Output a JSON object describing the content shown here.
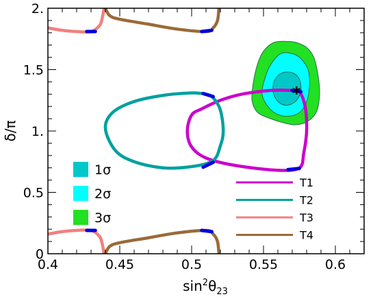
{
  "chart_data": {
    "type": "line",
    "xlabel": "sin²θ₂₃",
    "xlabel_main": "sin",
    "xlabel_sup": "2",
    "xlabel_theta": "θ",
    "xlabel_sub": "23",
    "ylabel": "δ/π",
    "xlim": [
      0.4,
      0.62
    ],
    "ylim": [
      0,
      2
    ],
    "xticks": [
      {
        "value": 0.4,
        "label": "0.4"
      },
      {
        "value": 0.45,
        "label": "0.45"
      },
      {
        "value": 0.5,
        "label": "0.5"
      },
      {
        "value": 0.55,
        "label": "0.55"
      },
      {
        "value": 0.6,
        "label": "0.6"
      }
    ],
    "yticks": [
      {
        "value": 0,
        "label": "0"
      },
      {
        "value": 0.5,
        "label": "0.5"
      },
      {
        "value": 1,
        "label": "1."
      },
      {
        "value": 1.5,
        "label": "1.5"
      },
      {
        "value": 2,
        "label": "2."
      }
    ],
    "grid": false,
    "contours": [
      {
        "name": "3σ",
        "color": "#22e022",
        "points": [
          [
            0.557,
            1.72
          ],
          [
            0.566,
            1.73
          ],
          [
            0.573,
            1.72
          ],
          [
            0.58,
            1.68
          ],
          [
            0.585,
            1.6
          ],
          [
            0.588,
            1.45
          ],
          [
            0.589,
            1.3
          ],
          [
            0.587,
            1.16
          ],
          [
            0.581,
            1.08
          ],
          [
            0.572,
            1.05
          ],
          [
            0.563,
            1.07
          ],
          [
            0.555,
            1.1
          ],
          [
            0.546,
            1.15
          ],
          [
            0.542,
            1.25
          ],
          [
            0.543,
            1.4
          ],
          [
            0.546,
            1.55
          ],
          [
            0.55,
            1.65
          ]
        ]
      },
      {
        "name": "2σ",
        "color": "#00ffff",
        "points": [
          [
            0.562,
            1.63
          ],
          [
            0.57,
            1.63
          ],
          [
            0.576,
            1.59
          ],
          [
            0.581,
            1.5
          ],
          [
            0.582,
            1.37
          ],
          [
            0.58,
            1.24
          ],
          [
            0.575,
            1.15
          ],
          [
            0.567,
            1.12
          ],
          [
            0.559,
            1.14
          ],
          [
            0.553,
            1.2
          ],
          [
            0.549,
            1.3
          ],
          [
            0.551,
            1.43
          ],
          [
            0.555,
            1.54
          ]
        ]
      },
      {
        "name": "1σ",
        "color": "#00c8c8",
        "points": [
          [
            0.565,
            1.48
          ],
          [
            0.571,
            1.47
          ],
          [
            0.575,
            1.42
          ],
          [
            0.576,
            1.33
          ],
          [
            0.573,
            1.25
          ],
          [
            0.567,
            1.21
          ],
          [
            0.561,
            1.23
          ],
          [
            0.557,
            1.3
          ],
          [
            0.557,
            1.39
          ],
          [
            0.56,
            1.45
          ]
        ]
      }
    ],
    "best_fit": {
      "x": 0.573,
      "y": 1.33,
      "marker": "*"
    },
    "series": [
      {
        "name": "T1",
        "color": "#cc00cc",
        "segments": [
          [
            [
              0.52,
              1.25
            ],
            [
              0.535,
              1.3
            ],
            [
              0.555,
              1.33
            ],
            [
              0.57,
              1.33
            ],
            [
              0.575,
              1.32
            ],
            [
              0.579,
              1.2
            ],
            [
              0.58,
              1.0
            ],
            [
              0.578,
              0.82
            ],
            [
              0.575,
              0.7
            ],
            [
              0.56,
              0.68
            ],
            [
              0.53,
              0.72
            ],
            [
              0.51,
              0.78
            ],
            [
              0.5,
              0.87
            ],
            [
              0.497,
              1.0
            ],
            [
              0.5,
              1.13
            ],
            [
              0.507,
              1.18
            ],
            [
              0.52,
              1.25
            ]
          ]
        ]
      },
      {
        "name": "T2",
        "color": "#00a0a0",
        "segments": [
          [
            [
              0.44,
              1.02
            ],
            [
              0.445,
              1.15
            ],
            [
              0.46,
              1.24
            ],
            [
              0.48,
              1.29
            ],
            [
              0.5,
              1.31
            ],
            [
              0.51,
              1.3
            ],
            [
              0.515,
              1.27
            ],
            [
              0.52,
              1.17
            ],
            [
              0.522,
              1.0
            ],
            [
              0.52,
              0.88
            ],
            [
              0.515,
              0.76
            ],
            [
              0.5,
              0.71
            ],
            [
              0.48,
              0.7
            ],
            [
              0.46,
              0.75
            ],
            [
              0.447,
              0.84
            ],
            [
              0.44,
              1.02
            ]
          ]
        ]
      },
      {
        "name": "T3",
        "color": "#f08080",
        "segments": [
          [
            [
              0.4,
              1.84
            ],
            [
              0.41,
              1.82
            ],
            [
              0.42,
              1.81
            ],
            [
              0.43,
              1.81
            ],
            [
              0.436,
              1.86
            ],
            [
              0.438,
              1.93
            ],
            [
              0.439,
              2.0
            ]
          ],
          [
            [
              0.4,
              0.16
            ],
            [
              0.41,
              0.18
            ],
            [
              0.42,
              0.19
            ],
            [
              0.43,
              0.19
            ],
            [
              0.436,
              0.14
            ],
            [
              0.438,
              0.07
            ],
            [
              0.439,
              0.0
            ]
          ]
        ]
      },
      {
        "name": "T4",
        "color": "#9b6a38",
        "segments": [
          [
            [
              0.44,
              2.0
            ],
            [
              0.443,
              1.94
            ],
            [
              0.45,
              1.91
            ],
            [
              0.47,
              1.87
            ],
            [
              0.49,
              1.83
            ],
            [
              0.51,
              1.81
            ],
            [
              0.515,
              1.84
            ],
            [
              0.518,
              1.9
            ],
            [
              0.519,
              2.0
            ]
          ],
          [
            [
              0.44,
              0.0
            ],
            [
              0.443,
              0.06
            ],
            [
              0.45,
              0.09
            ],
            [
              0.47,
              0.13
            ],
            [
              0.49,
              0.17
            ],
            [
              0.51,
              0.19
            ],
            [
              0.515,
              0.16
            ],
            [
              0.518,
              0.1
            ],
            [
              0.519,
              0.0
            ]
          ]
        ]
      }
    ],
    "highlight_color": "#0000e0",
    "highlights": [
      [
        [
          0.427,
          1.81
        ],
        [
          0.433,
          1.81
        ]
      ],
      [
        [
          0.427,
          0.19
        ],
        [
          0.433,
          0.19
        ]
      ],
      [
        [
          0.507,
          1.81
        ],
        [
          0.514,
          1.82
        ]
      ],
      [
        [
          0.507,
          0.19
        ],
        [
          0.514,
          0.18
        ]
      ],
      [
        [
          0.508,
          1.305
        ],
        [
          0.515,
          1.28
        ]
      ],
      [
        [
          0.508,
          0.705
        ],
        [
          0.515,
          0.745
        ]
      ],
      [
        [
          0.57,
          1.33
        ],
        [
          0.576,
          1.32
        ]
      ],
      [
        [
          0.567,
          0.685
        ],
        [
          0.575,
          0.695
        ]
      ]
    ],
    "sigma_legend": [
      {
        "label": "1σ",
        "color": "#00c8c8"
      },
      {
        "label": "2σ",
        "color": "#00ffff"
      },
      {
        "label": "3σ",
        "color": "#22e022"
      }
    ],
    "sigma_legend_position": "lower-left",
    "series_legend_position": "lower-right"
  }
}
